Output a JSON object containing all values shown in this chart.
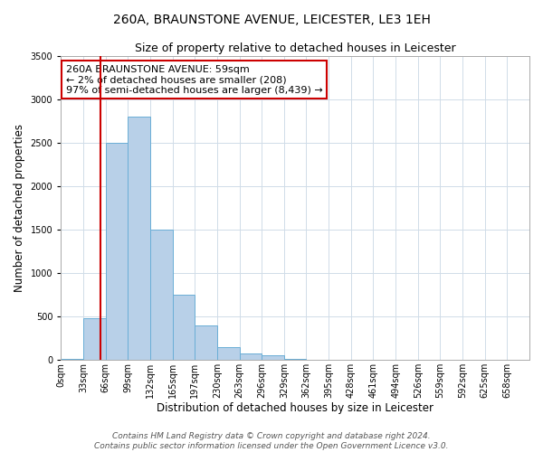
{
  "title": "260A, BRAUNSTONE AVENUE, LEICESTER, LE3 1EH",
  "subtitle": "Size of property relative to detached houses in Leicester",
  "xlabel": "Distribution of detached houses by size in Leicester",
  "ylabel": "Number of detached properties",
  "bin_labels": [
    "0sqm",
    "33sqm",
    "66sqm",
    "99sqm",
    "132sqm",
    "165sqm",
    "197sqm",
    "230sqm",
    "263sqm",
    "296sqm",
    "329sqm",
    "362sqm",
    "395sqm",
    "428sqm",
    "461sqm",
    "494sqm",
    "526sqm",
    "559sqm",
    "592sqm",
    "625sqm",
    "658sqm"
  ],
  "bar_heights": [
    10,
    480,
    2500,
    2800,
    1500,
    750,
    400,
    150,
    70,
    50,
    10,
    0,
    0,
    0,
    0,
    0,
    0,
    0,
    0,
    0,
    0
  ],
  "bar_color": "#b8d0e8",
  "bar_edge_color": "#6aaed6",
  "property_sqm": 59,
  "ylim": [
    0,
    3500
  ],
  "yticks": [
    0,
    500,
    1000,
    1500,
    2000,
    2500,
    3000,
    3500
  ],
  "annotation_line1": "260A BRAUNSTONE AVENUE: 59sqm",
  "annotation_line2": "← 2% of detached houses are smaller (208)",
  "annotation_line3": "97% of semi-detached houses are larger (8,439) →",
  "annotation_box_color": "#ffffff",
  "annotation_box_edge": "#cc0000",
  "footer_line1": "Contains HM Land Registry data © Crown copyright and database right 2024.",
  "footer_line2": "Contains public sector information licensed under the Open Government Licence v3.0.",
  "background_color": "#ffffff",
  "grid_color": "#d0dce8",
  "title_fontsize": 10,
  "subtitle_fontsize": 9,
  "axis_label_fontsize": 8.5,
  "tick_fontsize": 7,
  "annotation_fontsize": 8,
  "footer_fontsize": 6.5
}
